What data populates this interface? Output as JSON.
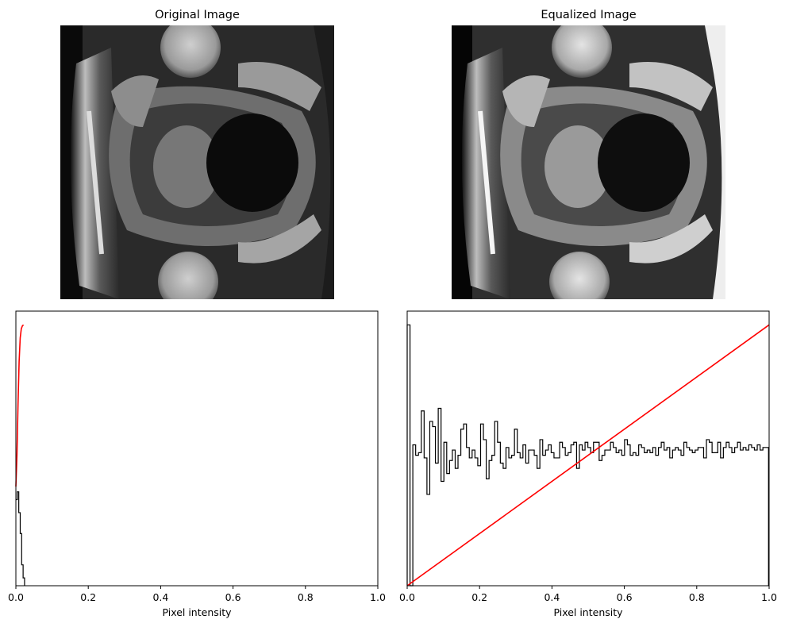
{
  "figure": {
    "panels": [
      {
        "id": "original-image",
        "title": "Original Image"
      },
      {
        "id": "equalized-image",
        "title": "Equalized Image"
      }
    ]
  },
  "chart_data": [
    {
      "type": "image",
      "title": "Original Image",
      "description_colormap": "gray"
    },
    {
      "type": "image",
      "title": "Equalized Image",
      "description_colormap": "gray"
    },
    {
      "type": "histogram",
      "title": "",
      "xlabel": "Pixel intensity",
      "ylabel": "",
      "xlim": [
        0,
        1
      ],
      "xticks": [
        "0.0",
        "0.2",
        "0.4",
        "0.6",
        "0.8",
        "1.0"
      ],
      "yticks_visible": false,
      "series": [
        {
          "kind": "step-histogram",
          "color": "#000000",
          "x": [
            0.0,
            0.004,
            0.008,
            0.012,
            0.016,
            0.02,
            0.024
          ],
          "y": [
            0.33,
            0.36,
            0.28,
            0.2,
            0.08,
            0.03,
            0.0
          ]
        },
        {
          "kind": "cdf-line",
          "color": "#ff0000",
          "x": [
            0.0,
            0.003,
            0.006,
            0.009,
            0.012,
            0.015,
            0.018,
            0.021
          ],
          "y": [
            0.38,
            0.5,
            0.7,
            0.86,
            0.95,
            0.985,
            0.996,
            1.0
          ]
        }
      ]
    },
    {
      "type": "histogram",
      "title": "",
      "xlabel": "Pixel intensity",
      "ylabel": "",
      "xlim": [
        0,
        1
      ],
      "xticks": [
        "0.0",
        "0.2",
        "0.4",
        "0.6",
        "0.8",
        "1.0"
      ],
      "yticks_visible": false,
      "series": [
        {
          "kind": "step-histogram",
          "color": "#000000",
          "bin_width": 0.0078,
          "y": [
            1.0,
            0.0,
            0.54,
            0.5,
            0.51,
            0.67,
            0.49,
            0.35,
            0.63,
            0.61,
            0.47,
            0.68,
            0.4,
            0.55,
            0.43,
            0.48,
            0.52,
            0.45,
            0.5,
            0.6,
            0.62,
            0.53,
            0.49,
            0.52,
            0.49,
            0.46,
            0.62,
            0.56,
            0.41,
            0.48,
            0.5,
            0.63,
            0.55,
            0.47,
            0.45,
            0.53,
            0.49,
            0.5,
            0.6,
            0.51,
            0.49,
            0.54,
            0.47,
            0.52,
            0.52,
            0.5,
            0.45,
            0.56,
            0.5,
            0.52,
            0.54,
            0.51,
            0.49,
            0.49,
            0.55,
            0.53,
            0.5,
            0.51,
            0.54,
            0.55,
            0.45,
            0.54,
            0.52,
            0.55,
            0.53,
            0.51,
            0.55,
            0.55,
            0.48,
            0.5,
            0.52,
            0.52,
            0.55,
            0.53,
            0.51,
            0.52,
            0.5,
            0.56,
            0.54,
            0.5,
            0.51,
            0.5,
            0.54,
            0.53,
            0.51,
            0.52,
            0.51,
            0.53,
            0.5,
            0.53,
            0.55,
            0.52,
            0.53,
            0.49,
            0.52,
            0.53,
            0.52,
            0.5,
            0.55,
            0.53,
            0.52,
            0.51,
            0.52,
            0.53,
            0.53,
            0.49,
            0.56,
            0.55,
            0.51,
            0.51,
            0.55,
            0.49,
            0.53,
            0.55,
            0.53,
            0.51,
            0.53,
            0.55,
            0.52,
            0.53,
            0.52,
            0.54,
            0.53,
            0.52,
            0.54,
            0.52,
            0.53,
            0.53
          ]
        },
        {
          "kind": "cdf-line",
          "color": "#ff0000",
          "x": [
            0.0,
            1.0
          ],
          "y": [
            0.0,
            1.0
          ]
        }
      ]
    }
  ]
}
